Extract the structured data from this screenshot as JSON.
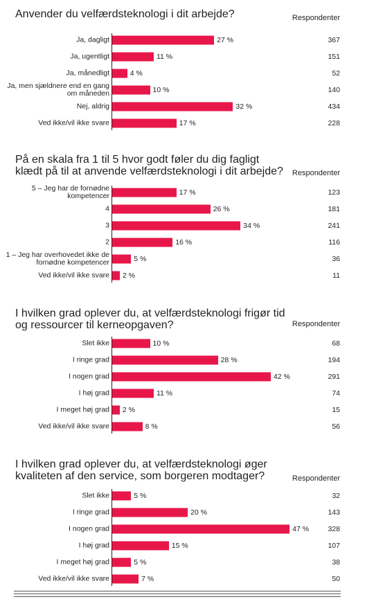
{
  "respondents_label": "Respondenter",
  "chart_data": [
    {
      "type": "bar",
      "orientation": "horizontal",
      "title": "Anvender du velfærdsteknologi i dit arbejde?",
      "categories": [
        "Ja, dagligt",
        "Ja, ugentligt",
        "Ja, månedligt",
        "Ja, men sjældnere end en gang om måneden",
        "Nej, aldrig",
        "Ved ikke/vil ikke svare"
      ],
      "values": [
        27,
        11,
        4,
        10,
        32,
        17
      ],
      "value_labels": [
        "27 %",
        "11 %",
        "4 %",
        "10 %",
        "32 %",
        "17 %"
      ],
      "respondents": [
        "367",
        "151",
        "52",
        "140",
        "434",
        "228"
      ],
      "xlim": [
        0,
        50
      ]
    },
    {
      "type": "bar",
      "orientation": "horizontal",
      "title": "På en skala fra 1 til 5 hvor godt føler du dig fagligt klædt på til at anvende velfærdsteknologi i dit arbejde?",
      "categories": [
        "5 – Jeg har de fornødne kompetencer",
        "4",
        "3",
        "2",
        "1 – Jeg har overhovedet ikke de fornødne kompetencer",
        "Ved ikke/vil ikke svare"
      ],
      "values": [
        17,
        26,
        34,
        16,
        5,
        2
      ],
      "value_labels": [
        "17 %",
        "26 %",
        "34 %",
        "16 %",
        "5 %",
        "2 %"
      ],
      "respondents": [
        "123",
        "181",
        "241",
        "116",
        "36",
        "11"
      ],
      "xlim": [
        0,
        50
      ]
    },
    {
      "type": "bar",
      "orientation": "horizontal",
      "title": "I hvilken grad oplever du, at velfærdsteknologi frigør tid og ressourcer til kerneopgaven?",
      "categories": [
        "Slet ikke",
        "I ringe grad",
        "I nogen grad",
        "I høj grad",
        "I meget høj grad",
        "Ved ikke/vil ikke svare"
      ],
      "values": [
        10,
        28,
        42,
        11,
        2,
        8
      ],
      "value_labels": [
        "10 %",
        "28 %",
        "42 %",
        "11 %",
        "2 %",
        "8 %"
      ],
      "respondents": [
        "68",
        "194",
        "291",
        "74",
        "15",
        "56"
      ],
      "xlim": [
        0,
        50
      ]
    },
    {
      "type": "bar",
      "orientation": "horizontal",
      "title": "I hvilken grad oplever du, at velfærdsteknologi øger kvaliteten af den service, som borgeren modtager?",
      "categories": [
        "Slet ikke",
        "I ringe grad",
        "I nogen grad",
        "I høj grad",
        "I meget høj grad",
        "Ved ikke/vil ikke svare"
      ],
      "values": [
        5,
        20,
        47,
        15,
        5,
        7
      ],
      "value_labels": [
        "5 %",
        "20 %",
        "47 %",
        "15 %",
        "5 %",
        "7 %"
      ],
      "respondents": [
        "32",
        "143",
        "328",
        "107",
        "38",
        "50"
      ],
      "xlim": [
        0,
        50
      ]
    }
  ]
}
